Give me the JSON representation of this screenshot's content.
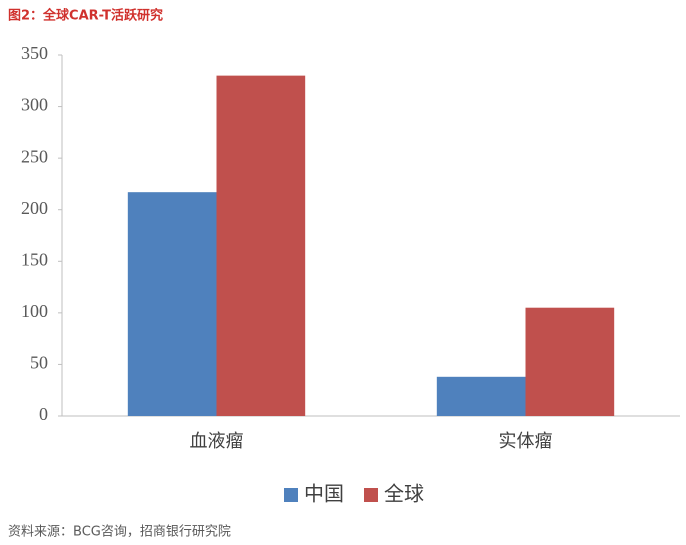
{
  "chart_data": {
    "type": "bar",
    "title": "图2：全球CAR-T活跃研究",
    "categories": [
      "血液瘤",
      "实体瘤"
    ],
    "series": [
      {
        "name": "中国",
        "color": "#4f81bd",
        "values": [
          217,
          38
        ]
      },
      {
        "name": "全球",
        "color": "#c0504d",
        "values": [
          330,
          105
        ]
      }
    ],
    "ylim": [
      0,
      350
    ],
    "yticks": [
      0,
      50,
      100,
      150,
      200,
      250,
      300,
      350
    ],
    "legend": "bottom",
    "source": "资料来源：BCG咨询，招商银行研究院"
  }
}
